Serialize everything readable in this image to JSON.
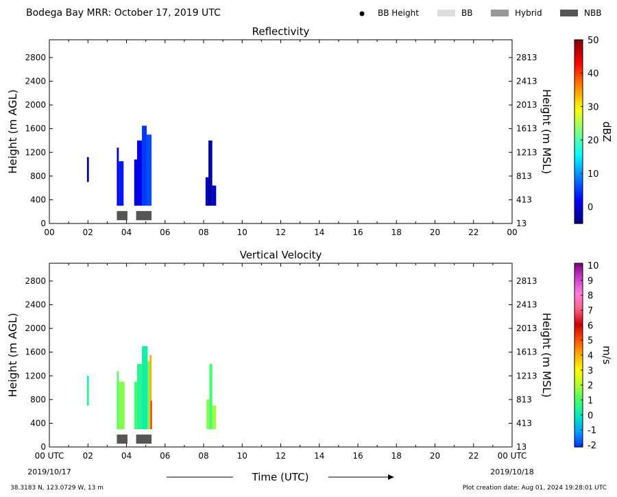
{
  "header": {
    "title": "Bodega Bay MRR:  October 17, 2019 UTC",
    "legend": [
      {
        "label": "BB Height",
        "marker": "dot",
        "color": "#000000"
      },
      {
        "label": "BB",
        "marker": "box",
        "color": "#dddddd"
      },
      {
        "label": "Hybrid",
        "marker": "box",
        "color": "#999999"
      },
      {
        "label": "NBB",
        "marker": "box",
        "color": "#555555"
      }
    ]
  },
  "footer": {
    "location": "38.3183 N, 123.0729 W, 13 m",
    "creation": "Plot creation date: Aug 01, 2024 19:28:01 UTC",
    "xlabel": "Time (UTC)",
    "start_date": "2019/10/17",
    "end_date": "2019/10/18"
  },
  "chart_data": [
    {
      "type": "heatmap",
      "title": "Reflectivity",
      "xlabel": "Time (UTC)",
      "ylabel": "Height (m AGL)",
      "ylabel_right": "Height (m MSL)",
      "xlim": [
        0,
        24
      ],
      "ylim": [
        0,
        3100
      ],
      "x_ticks": [
        "00",
        "02",
        "04",
        "06",
        "08",
        "10",
        "12",
        "14",
        "16",
        "18",
        "20",
        "22",
        "00"
      ],
      "y_ticks": [
        0,
        400,
        800,
        1200,
        1600,
        2000,
        2400,
        2800
      ],
      "y_ticks_right": [
        13,
        413,
        813,
        1213,
        1613,
        2013,
        2413,
        2813
      ],
      "colorbar": {
        "label": "dBZ",
        "min": -5,
        "max": 50,
        "ticks": [
          "0",
          "10",
          "20",
          "30",
          "40",
          "50"
        ],
        "colors": [
          "#00007f",
          "#0000ff",
          "#007fff",
          "#00ffff",
          "#7fff7f",
          "#ffff00",
          "#ff7f00",
          "#ff0000",
          "#7f0000"
        ]
      },
      "echoes": [
        {
          "t": [
            1.95,
            2.05
          ],
          "h": [
            700,
            1120
          ],
          "value": -3
        },
        {
          "t": [
            3.5,
            3.6
          ],
          "h": [
            300,
            1280
          ],
          "value": 0
        },
        {
          "t": [
            3.6,
            3.85
          ],
          "h": [
            300,
            1050
          ],
          "value": 3
        },
        {
          "t": [
            4.4,
            4.55
          ],
          "h": [
            300,
            1080
          ],
          "value": -1
        },
        {
          "t": [
            4.55,
            4.8
          ],
          "h": [
            300,
            1400
          ],
          "value": 1
        },
        {
          "t": [
            4.8,
            5.05
          ],
          "h": [
            300,
            1650
          ],
          "value": 5
        },
        {
          "t": [
            5.05,
            5.3
          ],
          "h": [
            300,
            1500
          ],
          "value": 6
        },
        {
          "t": [
            8.1,
            8.3
          ],
          "h": [
            300,
            780
          ],
          "value": -2
        },
        {
          "t": [
            8.25,
            8.45
          ],
          "h": [
            300,
            1400
          ],
          "value": -3
        },
        {
          "t": [
            8.45,
            8.65
          ],
          "h": [
            300,
            640
          ],
          "value": -1
        }
      ],
      "bright_band": [
        {
          "t": [
            3.5,
            4.05
          ],
          "h": [
            55,
            210
          ],
          "kind": "NBB"
        },
        {
          "t": [
            4.5,
            5.3
          ],
          "h": [
            55,
            210
          ],
          "kind": "NBB"
        }
      ]
    },
    {
      "type": "heatmap",
      "title": "Vertical Velocity",
      "xlabel": "Time (UTC)",
      "ylabel": "Height (m AGL)",
      "ylabel_right": "Height (m MSL)",
      "xlim": [
        0,
        24
      ],
      "ylim": [
        0,
        3100
      ],
      "x_ticks": [
        "00 UTC",
        "02",
        "04",
        "06",
        "08",
        "10",
        "12",
        "14",
        "16",
        "18",
        "20",
        "22",
        "00 UTC"
      ],
      "y_ticks": [
        0,
        400,
        800,
        1200,
        1600,
        2000,
        2400,
        2800
      ],
      "y_ticks_right": [
        13,
        413,
        813,
        1213,
        1613,
        2013,
        2413,
        2813
      ],
      "colorbar": {
        "label": "m/s",
        "min": -2,
        "max": 10,
        "ticks": [
          "-2",
          "-1",
          "0",
          "1",
          "2",
          "3",
          "4",
          "5",
          "6",
          "7",
          "8",
          "9",
          "10"
        ],
        "colors": [
          "#0030ff",
          "#00a0ff",
          "#00e8c0",
          "#40ff70",
          "#b0ff30",
          "#ffff00",
          "#ffb000",
          "#ff5000",
          "#cc0000",
          "#ff6080",
          "#ff80e0",
          "#cc40cc",
          "#800080"
        ]
      },
      "echoes": [
        {
          "t": [
            1.95,
            2.05
          ],
          "h": [
            700,
            1200
          ],
          "value": 0.5
        },
        {
          "t": [
            3.5,
            3.6
          ],
          "h": [
            300,
            1280
          ],
          "value": 1.2
        },
        {
          "t": [
            3.6,
            3.9
          ],
          "h": [
            300,
            1100
          ],
          "value": 1.6
        },
        {
          "t": [
            4.4,
            4.55
          ],
          "h": [
            300,
            1100
          ],
          "value": 1.0
        },
        {
          "t": [
            4.55,
            4.8
          ],
          "h": [
            300,
            1400
          ],
          "value": 0.6
        },
        {
          "t": [
            4.8,
            5.1
          ],
          "h": [
            300,
            1700
          ],
          "value": 0.3
        },
        {
          "t": [
            5.1,
            5.2
          ],
          "h": [
            300,
            1450
          ],
          "value": 1.4
        },
        {
          "t": [
            5.2,
            5.3
          ],
          "h": [
            300,
            1550
          ],
          "value": 4.0
        },
        {
          "t": [
            5.25,
            5.32
          ],
          "h": [
            300,
            780
          ],
          "value": 5.5
        },
        {
          "t": [
            8.15,
            8.3
          ],
          "h": [
            300,
            800
          ],
          "value": 1.6
        },
        {
          "t": [
            8.3,
            8.45
          ],
          "h": [
            300,
            1400
          ],
          "value": 1.0
        },
        {
          "t": [
            8.45,
            8.65
          ],
          "h": [
            300,
            700
          ],
          "value": 1.8
        }
      ],
      "bright_band": [
        {
          "t": [
            3.5,
            4.05
          ],
          "h": [
            55,
            210
          ],
          "kind": "NBB"
        },
        {
          "t": [
            4.5,
            5.3
          ],
          "h": [
            55,
            210
          ],
          "kind": "NBB"
        }
      ]
    }
  ]
}
